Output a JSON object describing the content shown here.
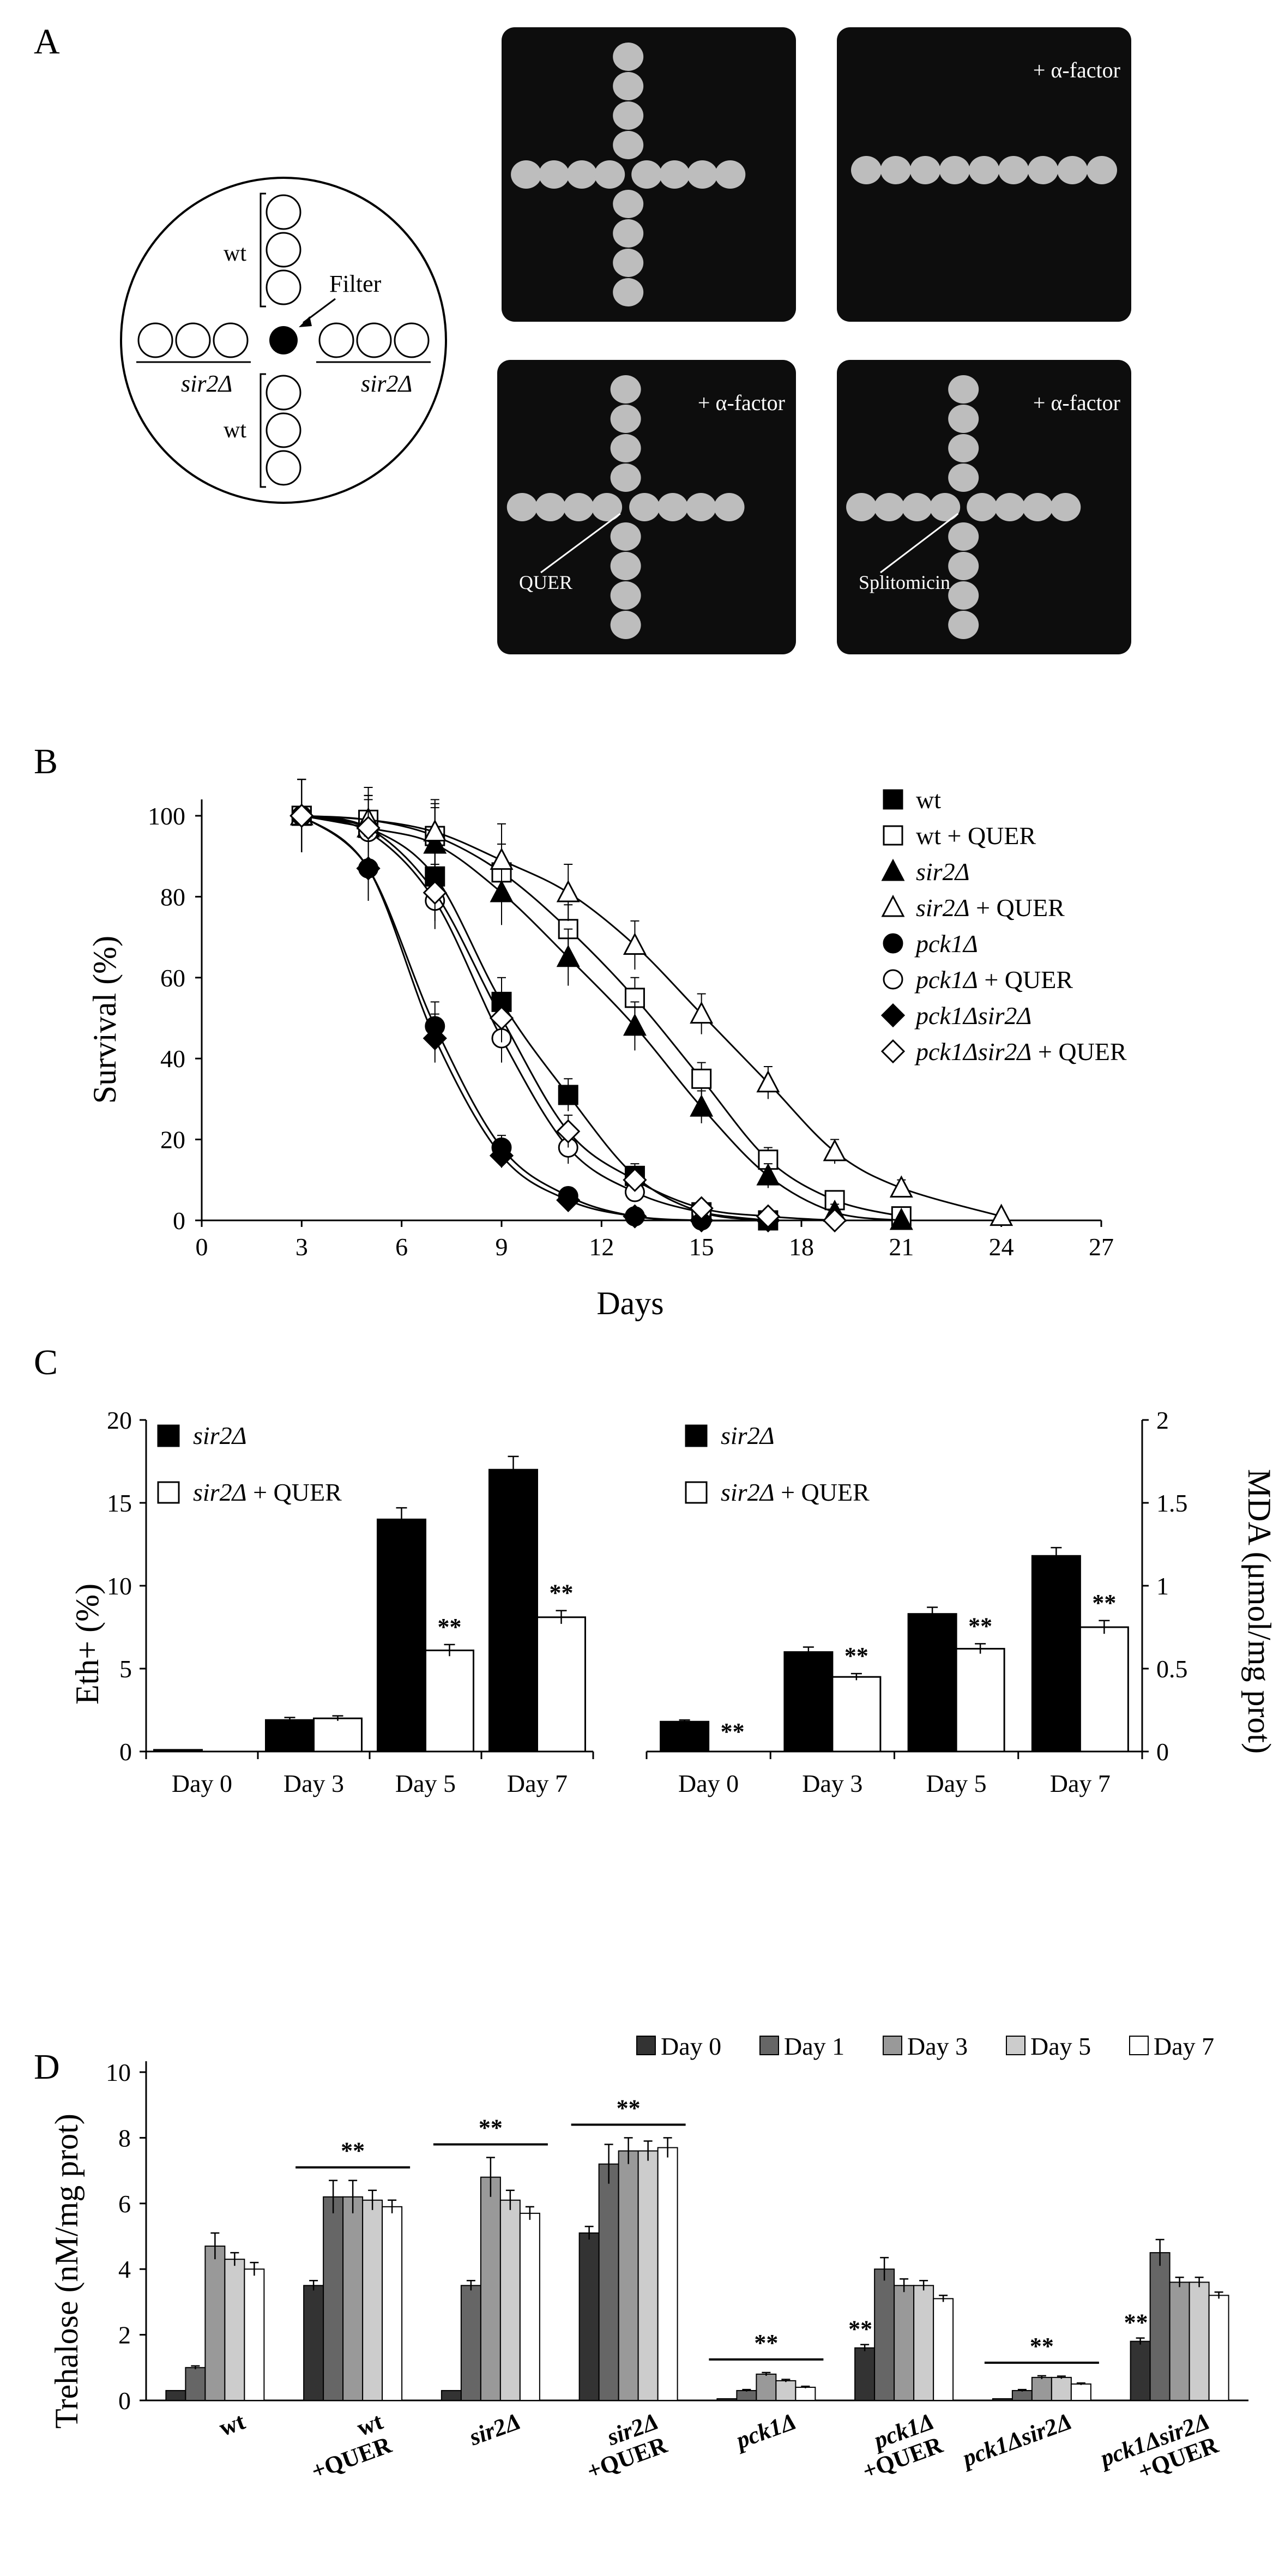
{
  "panelA": {
    "letter": "A",
    "diagram": {
      "top_label": "wt",
      "bottom_label": "wt",
      "left_label": "sir2Δ",
      "right_label": "sir2Δ",
      "filter_label": "Filter"
    },
    "photos": [
      {
        "label": "",
        "annotation": ""
      },
      {
        "label": "+ α-factor",
        "annotation": ""
      },
      {
        "label": "+ α-factor",
        "annotation": "QUER"
      },
      {
        "label": "+ α-factor",
        "annotation": "Splitomicin"
      }
    ]
  },
  "chart_data": [
    {
      "panel": "B",
      "type": "line",
      "title": "",
      "xlabel": "Days",
      "ylabel": "Survival (%)",
      "xlim": [
        0,
        27
      ],
      "ylim": [
        0,
        100
      ],
      "xticks": [
        "0",
        "3",
        "6",
        "9",
        "12",
        "15",
        "18",
        "21",
        "24",
        "27"
      ],
      "yticks": [
        "0",
        "20",
        "40",
        "60",
        "80",
        "100"
      ],
      "series": [
        {
          "name": "wt",
          "marker": "filled-square",
          "x": [
            3,
            5,
            7,
            9,
            11,
            13,
            15,
            17
          ],
          "y": [
            100,
            97,
            85,
            54,
            31,
            11,
            2,
            0
          ],
          "err": [
            9,
            8,
            7,
            6,
            4,
            3,
            2,
            1
          ]
        },
        {
          "name": "wt + QUER",
          "marker": "open-square",
          "x": [
            3,
            5,
            7,
            9,
            11,
            13,
            15,
            17,
            19,
            21
          ],
          "y": [
            100,
            99,
            95,
            86,
            72,
            55,
            35,
            15,
            5,
            1
          ],
          "err": [
            9,
            8,
            8,
            7,
            6,
            5,
            4,
            3,
            2,
            1
          ]
        },
        {
          "name": "sir2Δ",
          "marker": "filled-triangle",
          "x": [
            3,
            5,
            7,
            9,
            11,
            13,
            15,
            17,
            19,
            21
          ],
          "y": [
            100,
            97,
            93,
            81,
            65,
            48,
            28,
            11,
            2,
            0
          ],
          "err": [
            9,
            8,
            9,
            8,
            7,
            6,
            4,
            3,
            2,
            1
          ]
        },
        {
          "name": "sir2Δ + QUER",
          "marker": "open-triangle",
          "x": [
            3,
            5,
            7,
            9,
            11,
            13,
            15,
            17,
            19,
            21,
            24
          ],
          "y": [
            100,
            99,
            96,
            89,
            81,
            68,
            51,
            34,
            17,
            8,
            1
          ],
          "err": [
            9,
            8,
            8,
            9,
            7,
            6,
            5,
            4,
            3,
            2,
            1
          ]
        },
        {
          "name": "pck1Δ",
          "marker": "filled-circle",
          "x": [
            3,
            5,
            7,
            9,
            11,
            13,
            15,
            17
          ],
          "y": [
            100,
            87,
            48,
            18,
            6,
            1,
            0,
            0
          ],
          "err": [
            9,
            8,
            6,
            3,
            2,
            1,
            1,
            1
          ]
        },
        {
          "name": "pck1Δ + QUER",
          "marker": "open-circle",
          "x": [
            3,
            5,
            7,
            9,
            11,
            13,
            15,
            17
          ],
          "y": [
            100,
            96,
            79,
            45,
            18,
            7,
            2,
            0
          ],
          "err": [
            9,
            8,
            7,
            6,
            4,
            2,
            1,
            1
          ]
        },
        {
          "name": "pck1Δsir2Δ",
          "marker": "filled-diamond",
          "x": [
            3,
            5,
            7,
            9,
            11,
            13,
            15,
            17
          ],
          "y": [
            100,
            87,
            45,
            16,
            5,
            1,
            0,
            0
          ],
          "err": [
            9,
            8,
            6,
            3,
            2,
            1,
            1,
            1
          ]
        },
        {
          "name": "pck1Δsir2Δ + QUER",
          "marker": "open-diamond",
          "x": [
            3,
            5,
            7,
            9,
            11,
            13,
            15,
            17,
            19
          ],
          "y": [
            100,
            97,
            81,
            50,
            22,
            10,
            3,
            1,
            0
          ],
          "err": [
            9,
            8,
            7,
            6,
            4,
            2,
            1,
            1,
            1
          ]
        }
      ]
    },
    {
      "panel": "C-left",
      "type": "bar",
      "title": "",
      "xlabel": "",
      "ylabel": "Eth+ (%)",
      "ylim": [
        0,
        20
      ],
      "yticks": [
        "0",
        "5",
        "10",
        "15",
        "20"
      ],
      "categories": [
        "Day 0",
        "Day 3",
        "Day 5",
        "Day 7"
      ],
      "series": [
        {
          "name": "sir2Δ",
          "values": [
            0.1,
            1.9,
            14.0,
            17.0
          ],
          "err": [
            0,
            0.15,
            0.7,
            0.8
          ]
        },
        {
          "name": "sir2Δ + QUER",
          "values": [
            0,
            2.0,
            6.1,
            8.1
          ],
          "err": [
            0,
            0.15,
            0.35,
            0.4
          ]
        }
      ],
      "annotations": [
        {
          "category": "Day 5",
          "series": "sir2Δ + QUER",
          "text": "**"
        },
        {
          "category": "Day 7",
          "series": "sir2Δ + QUER",
          "text": "**"
        }
      ]
    },
    {
      "panel": "C-right",
      "type": "bar",
      "title": "",
      "xlabel": "",
      "ylabel": "MDA (μmol/mg prot)",
      "ylim": [
        0,
        2
      ],
      "yticks": [
        "0",
        "0.5",
        "1",
        "1.5",
        "2"
      ],
      "categories": [
        "Day 0",
        "Day 3",
        "Day 5",
        "Day 7"
      ],
      "series": [
        {
          "name": "sir2Δ",
          "values": [
            0.18,
            0.6,
            0.83,
            1.18
          ],
          "err": [
            0.01,
            0.03,
            0.04,
            0.05
          ]
        },
        {
          "name": "sir2Δ + QUER",
          "values": [
            0,
            0.45,
            0.62,
            0.75
          ],
          "err": [
            0,
            0.02,
            0.03,
            0.04
          ]
        }
      ],
      "annotations": [
        {
          "category": "Day 0",
          "series": "sir2Δ + QUER",
          "text": "**"
        },
        {
          "category": "Day 3",
          "series": "sir2Δ + QUER",
          "text": "**"
        },
        {
          "category": "Day 5",
          "series": "sir2Δ + QUER",
          "text": "**"
        },
        {
          "category": "Day 7",
          "series": "sir2Δ + QUER",
          "text": "**"
        }
      ]
    },
    {
      "panel": "D",
      "type": "bar",
      "title": "",
      "xlabel": "",
      "ylabel": "Trehalose (nM/mg prot)",
      "ylim": [
        0,
        10
      ],
      "yticks": [
        "0",
        "2",
        "4",
        "6",
        "8",
        "10"
      ],
      "categories": [
        "wt",
        "wt +QUER",
        "sir2Δ",
        "sir2Δ +QUER",
        "pck1Δ",
        "pck1Δ +QUER",
        "pck1Δsir2Δ",
        "pck1Δsir2Δ +QUER"
      ],
      "series": [
        {
          "name": "Day 0",
          "color": "#333333",
          "values": [
            0.3,
            3.5,
            0.3,
            5.1,
            0.05,
            1.6,
            0.05,
            1.8
          ],
          "err": [
            0,
            0.15,
            0,
            0.2,
            0,
            0.1,
            0,
            0.1
          ]
        },
        {
          "name": "Day 1",
          "color": "#666666",
          "values": [
            1.0,
            6.2,
            3.5,
            7.2,
            0.3,
            4.0,
            0.3,
            4.5
          ],
          "err": [
            0.05,
            0.5,
            0.15,
            0.6,
            0.03,
            0.35,
            0.03,
            0.4
          ]
        },
        {
          "name": "Day 3",
          "color": "#999999",
          "values": [
            4.7,
            6.2,
            6.8,
            7.6,
            0.8,
            3.5,
            0.7,
            3.6
          ],
          "err": [
            0.4,
            0.5,
            0.6,
            0.4,
            0.05,
            0.2,
            0.05,
            0.15
          ]
        },
        {
          "name": "Day 5",
          "color": "#cccccc",
          "values": [
            4.3,
            6.1,
            6.1,
            7.6,
            0.6,
            3.5,
            0.7,
            3.6
          ],
          "err": [
            0.2,
            0.3,
            0.3,
            0.3,
            0.04,
            0.15,
            0.04,
            0.15
          ]
        },
        {
          "name": "Day 7",
          "color": "#ffffff",
          "values": [
            4.0,
            5.9,
            5.7,
            7.7,
            0.4,
            3.1,
            0.5,
            3.2
          ],
          "err": [
            0.2,
            0.2,
            0.2,
            0.3,
            0.03,
            0.1,
            0.03,
            0.1
          ]
        }
      ],
      "significance": [
        {
          "category": "wt +QUER",
          "text": "**",
          "position": "line"
        },
        {
          "category": "sir2Δ",
          "text": "**",
          "position": "line"
        },
        {
          "category": "sir2Δ +QUER",
          "text": "**",
          "position": "line"
        },
        {
          "category": "pck1Δ",
          "text": "**",
          "position": "line"
        },
        {
          "category": "pck1Δ +QUER",
          "text": "**",
          "position": "first-bar"
        },
        {
          "category": "pck1Δsir2Δ",
          "text": "**",
          "position": "line"
        },
        {
          "category": "pck1Δsir2Δ +QUER",
          "text": "**",
          "position": "first-bar"
        }
      ]
    }
  ],
  "panel_letters": {
    "B": "B",
    "C": "C",
    "D": "D"
  }
}
